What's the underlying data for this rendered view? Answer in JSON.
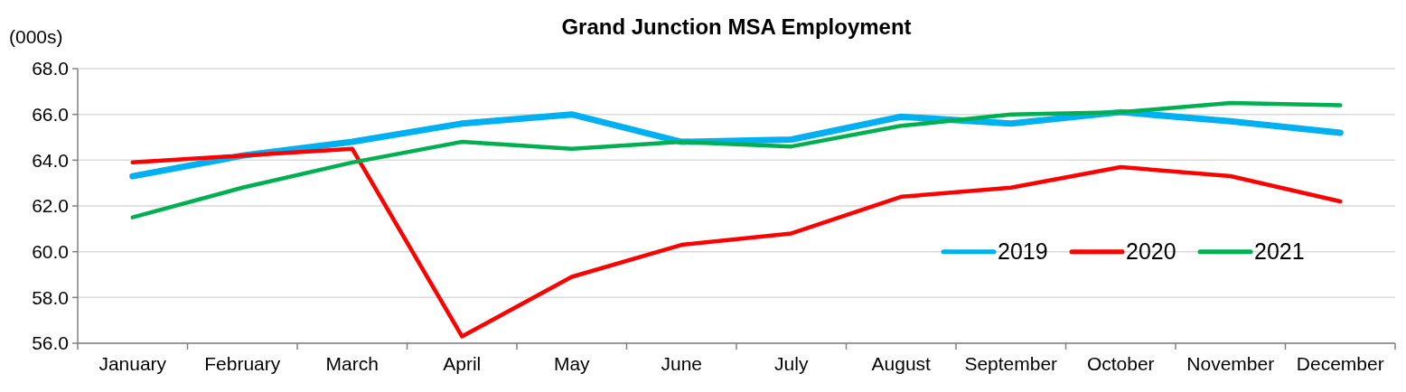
{
  "chart_data": {
    "type": "line",
    "title": "Grand Junction  MSA Employment",
    "ylabel": "(000s)",
    "categories": [
      "January",
      "February",
      "March",
      "April",
      "May",
      "June",
      "July",
      "August",
      "September",
      "October",
      "November",
      "December"
    ],
    "series": [
      {
        "name": "2019",
        "color": "#00b0f0",
        "values": [
          63.3,
          64.2,
          64.8,
          65.6,
          66.0,
          64.8,
          64.9,
          65.9,
          65.6,
          66.1,
          65.7,
          65.2
        ]
      },
      {
        "name": "2020",
        "color": "#ff0000",
        "values": [
          63.9,
          64.2,
          64.5,
          56.3,
          58.9,
          60.3,
          60.8,
          62.4,
          62.8,
          63.7,
          63.3,
          62.2
        ]
      },
      {
        "name": "2021",
        "color": "#00b050",
        "values": [
          61.5,
          62.8,
          63.9,
          64.8,
          64.5,
          64.8,
          64.6,
          65.5,
          66.0,
          66.1,
          66.5,
          66.4
        ]
      }
    ],
    "ylim": [
      56,
      68
    ],
    "yticks": [
      {
        "value": 56,
        "label": "56.0"
      },
      {
        "value": 58,
        "label": "58.0"
      },
      {
        "value": 60,
        "label": "60.0"
      },
      {
        "value": 62,
        "label": "62.0"
      },
      {
        "value": 64,
        "label": "64.0"
      },
      {
        "value": 66,
        "label": "66.0"
      },
      {
        "value": 68,
        "label": "68.0"
      }
    ],
    "grid": "y",
    "legend": "right",
    "marker": "none",
    "line_style": "solid"
  }
}
